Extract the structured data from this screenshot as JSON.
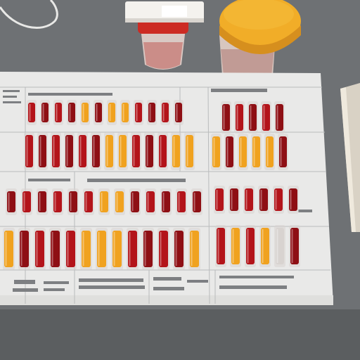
{
  "scene": {
    "description_free": true,
    "colors": {
      "table": "#6d7073",
      "paper": "#e9e9e8",
      "grid_line": "#b9bbbc",
      "tube_red": "#b3141a",
      "tube_dark_red": "#8e0f14",
      "tube_orange": "#f0a21f",
      "tube_glass": "#d8d3d0",
      "cup_left_lid": "#cc2b23",
      "cup_right_lid": "#f1ad28",
      "card_right": "#d9d2c5"
    },
    "objects": [
      {
        "name": "cable",
        "kind": "curve"
      },
      {
        "name": "specimen-cup-left",
        "kind": "cup",
        "lid": "red",
        "cap": "white"
      },
      {
        "name": "specimen-cup-right",
        "kind": "cup",
        "lid": "yellow"
      },
      {
        "name": "test-sheet",
        "kind": "paper-grid"
      },
      {
        "name": "side-card",
        "kind": "card"
      }
    ],
    "tube_rows": [
      {
        "row": 1,
        "pattern": [
          "r",
          "r",
          "r",
          "r",
          "o",
          "r",
          "o",
          "o",
          "r",
          "r",
          "r",
          "r"
        ]
      },
      {
        "row": 2,
        "pattern": [
          "r",
          "r",
          "r",
          "r",
          "r",
          "r",
          "o",
          "o",
          "r",
          "r",
          "r",
          "o",
          "o",
          "o",
          "o",
          "r"
        ]
      },
      {
        "row": 3,
        "pattern": [
          "r",
          "r",
          "r",
          "r",
          "r",
          "r",
          "o",
          "o",
          "r",
          "r",
          "r",
          "r",
          "r",
          "r",
          "r"
        ]
      },
      {
        "row": 4,
        "pattern": [
          "o",
          "r",
          "r",
          "r",
          "r",
          "o",
          "o",
          "o",
          "r",
          "r",
          "r",
          "r",
          "o",
          "o",
          "r"
        ]
      }
    ]
  }
}
